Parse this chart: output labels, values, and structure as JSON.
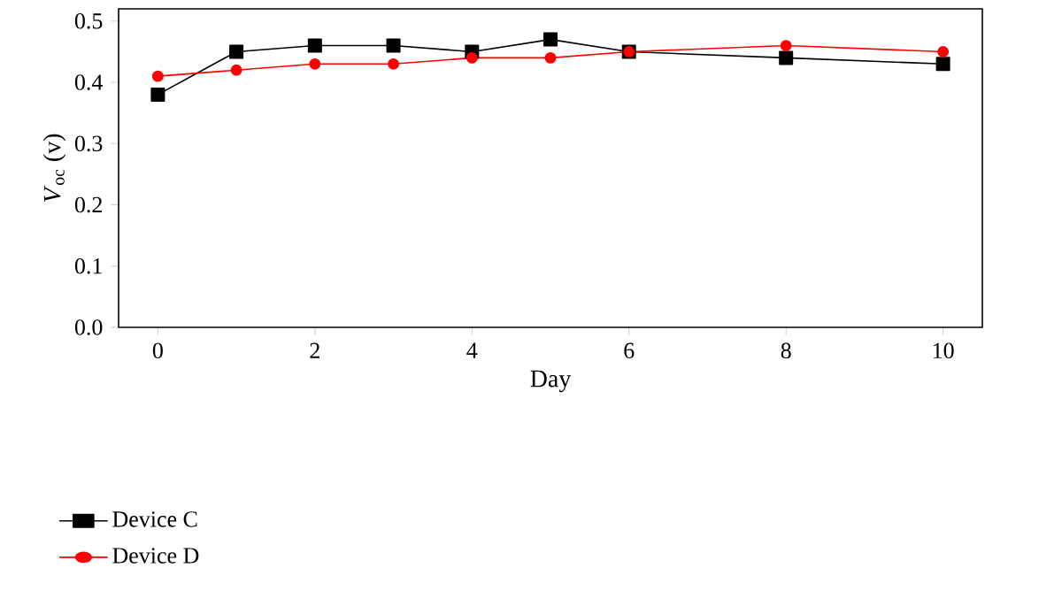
{
  "chart_data": {
    "type": "line",
    "xlabel": "Day",
    "ylabel": "*V*$_{oc}$ (v)",
    "x": [
      0,
      1,
      2,
      3,
      4,
      5,
      6,
      8,
      10
    ],
    "series": [
      {
        "name": "Device C",
        "color": "#000000",
        "marker": "square",
        "values": [
          0.38,
          0.45,
          0.46,
          0.46,
          0.45,
          0.47,
          0.45,
          0.44,
          0.43
        ]
      },
      {
        "name": "Device D",
        "color": "#ff0000",
        "marker": "circle",
        "values": [
          0.41,
          0.42,
          0.43,
          0.43,
          0.44,
          0.44,
          0.45,
          0.46,
          0.45
        ]
      }
    ],
    "xlim": [
      -0.5,
      10.5
    ],
    "xticks": [
      0,
      2,
      4,
      6,
      8,
      10
    ],
    "ylim": [
      0,
      0.52
    ],
    "yticks": [
      {
        "value": 0,
        "label": "0.0"
      },
      {
        "value": 0.1,
        "label": "0.1"
      },
      {
        "value": 0.2,
        "label": "0.2"
      },
      {
        "value": 0.3,
        "label": "0.3"
      },
      {
        "value": 0.4,
        "label": "0.4"
      },
      {
        "value": 0.5,
        "label": "0.5"
      }
    ],
    "legend": "bottom left",
    "grid": false
  }
}
